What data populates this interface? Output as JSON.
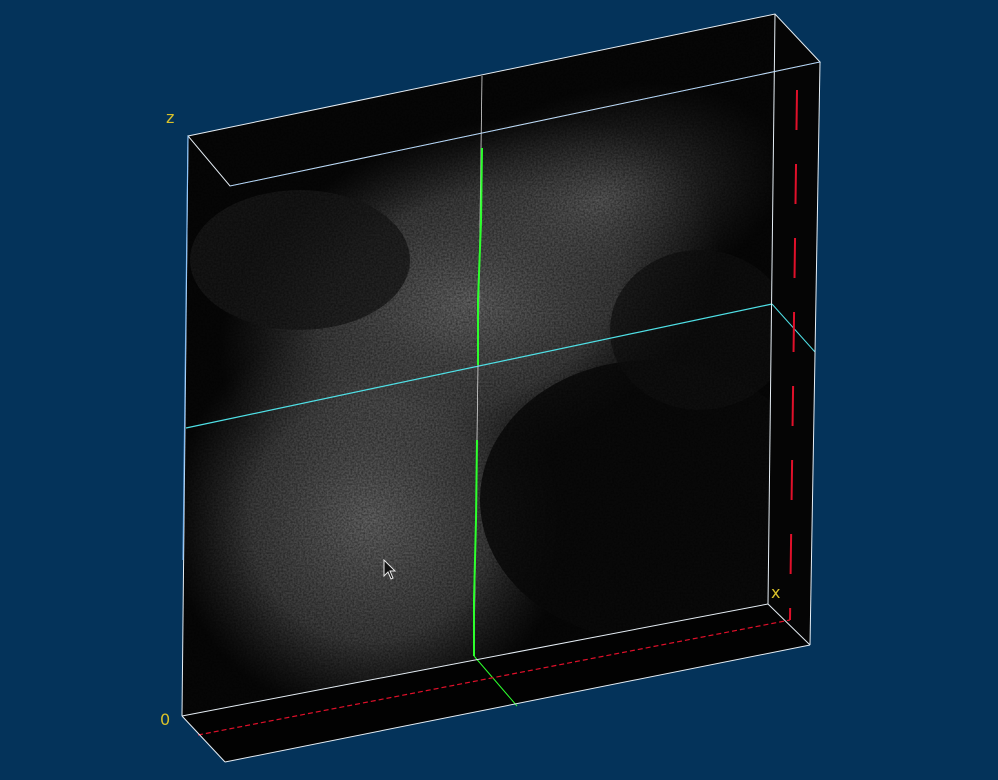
{
  "viewer": {
    "background_color": "#04335a",
    "axis_labels": {
      "z": "z",
      "x": "x",
      "origin": "0"
    },
    "colors": {
      "bounding_box": "#e6eef5",
      "slice_cyan": "#4fe0e6",
      "slice_green": "#2dff2d",
      "slice_red": "#e0102a",
      "axis_label": "#d9c12a"
    },
    "cursor": "arrow-pointer-icon"
  }
}
